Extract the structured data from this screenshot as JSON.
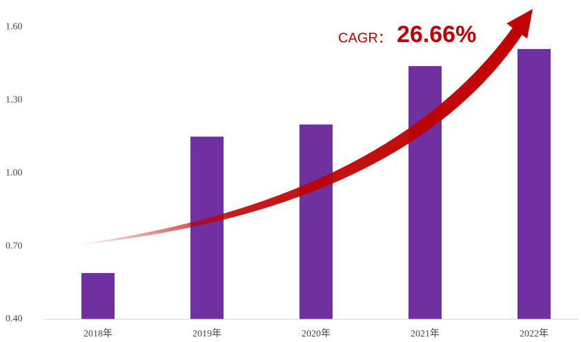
{
  "chart_data": {
    "type": "bar",
    "categories": [
      "2018年",
      "2019年",
      "2020年",
      "2021年",
      "2022年"
    ],
    "values": [
      0.59,
      1.15,
      1.2,
      1.44,
      1.51
    ],
    "color": "#7030a0",
    "ylim": [
      0.4,
      1.7
    ],
    "yticks": [
      {
        "value": 0.4,
        "label": "0.40"
      },
      {
        "value": 0.7,
        "label": "0.70"
      },
      {
        "value": 1.0,
        "label": "1.00"
      },
      {
        "value": 1.3,
        "label": "1.30"
      },
      {
        "value": 1.6,
        "label": "1.60"
      }
    ],
    "grid": false,
    "annotations": [
      "CAGR：",
      "26.66%"
    ]
  }
}
